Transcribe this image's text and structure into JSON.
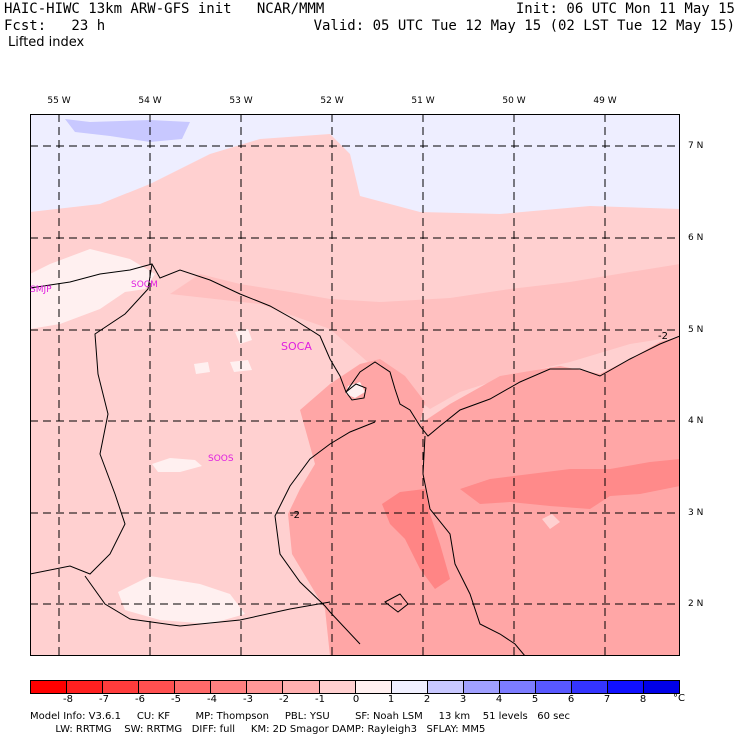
{
  "header": {
    "left_line1": "HAIC-HIWC 13km ARW-GFS init   NCAR/MMM",
    "left_line2": "Fcst:   23 h",
    "field_name": "Lifted index",
    "right_line1": "Init: 06 UTC Mon 11 May 15",
    "right_line2": "Valid: 05 UTC Tue 12 May 15 (02 LST Tue 12 May 15)"
  },
  "map": {
    "longitude_labels": [
      "55 W",
      "54 W",
      "53 W",
      "52 W",
      "51 W",
      "50 W",
      "49 W"
    ],
    "latitude_labels": [
      "7 N",
      "6 N",
      "5 N",
      "4 N",
      "3 N",
      "2 N"
    ],
    "station_labels": [
      "SMJP",
      "SOCM",
      "SOCA",
      "SOOS"
    ],
    "contour_labels": [
      "-2",
      "-2"
    ],
    "colors": {
      "fill_0_to_1": "#fff0f0",
      "fill_-1_to_0": "#ffd0d0",
      "fill_-2_to_-1": "#ffa6a6",
      "fill_-3_to_-2": "#ff8080",
      "fill_1_to_2": "#e8e8ff",
      "fill_2_to_3": "#c8c8ff",
      "station_label_color": "#e020e0"
    }
  },
  "colorbar": {
    "ticks": [
      "-8",
      "-7",
      "-6",
      "-5",
      "-4",
      "-3",
      "-2",
      "-1",
      "0",
      "1",
      "2",
      "3",
      "4",
      "5",
      "6",
      "7",
      "8"
    ],
    "unit": "°C",
    "colors": [
      "#ff0000",
      "#ff2020",
      "#ff3c3c",
      "#ff5050",
      "#ff6a6a",
      "#ff8080",
      "#ff9898",
      "#ffb0b0",
      "#ffd0d0",
      "#fff0f0",
      "#f0f0ff",
      "#c8c8ff",
      "#a0a0ff",
      "#7c7cff",
      "#5858ff",
      "#3434ff",
      "#1010ff",
      "#0000e8"
    ]
  },
  "footer": {
    "line1": "Model Info: V3.6.1     CU: KF        MP: Thompson     PBL: YSU        SF: Noah LSM     13 km    51 levels   60 sec",
    "line2": "        LW: RRTMG    SW: RRTMG   DIFF: full     KM: 2D Smagor DAMP: Rayleigh3   SFLAY: MM5"
  }
}
